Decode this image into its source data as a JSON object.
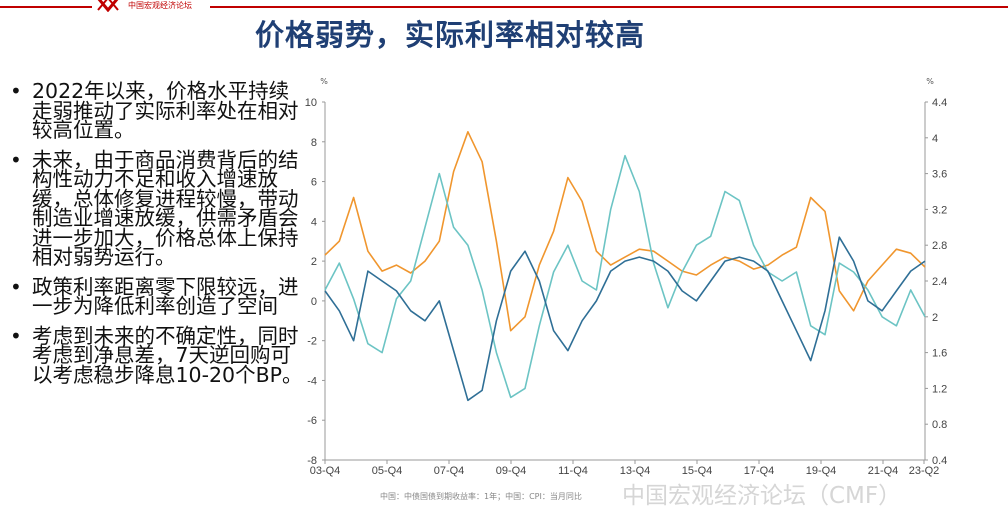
{
  "header": {
    "logo_text": "中国宏观经济论坛",
    "title": "价格弱势，实际利率相对较高"
  },
  "bullets": [
    "2022年以来，价格水平持续走弱推动了实际利率处在相对较高位置。",
    "未来，由于商品消费背后的结构性动力不足和收入增速放缓，总体修复进程较慢，带动制造业增速放缓，供需矛盾会进一步加大，价格总体上保持相对弱势运行。",
    "政策利率距离零下限较远，进一步为降低利率创造了空间",
    "考虑到未来的不确定性，同时考虑到净息差，7天逆回购可以考虑稳步降息10-20个BP。"
  ],
  "watermark": "中国宏观经济论坛（CMF）",
  "chart_data": {
    "type": "line",
    "x_ticks": [
      "03-Q4",
      "05-Q4",
      "07-Q4",
      "09-Q4",
      "11-Q4",
      "13-Q4",
      "15-Q4",
      "17-Q4",
      "19-Q4",
      "21-Q4",
      "23-Q2"
    ],
    "x_range": [
      "2003-Q4",
      "2023-Q2"
    ],
    "left_axis": {
      "unit": "%",
      "ylim": [
        -8,
        10
      ],
      "ticks": [
        -8,
        -6,
        -4,
        -2,
        0,
        2,
        4,
        6,
        8,
        10
      ]
    },
    "right_axis": {
      "unit": "%",
      "ylim": [
        0.4,
        4.4
      ],
      "ticks": [
        0.4,
        0.8,
        1.2,
        1.6,
        2,
        2.4,
        2.8,
        3.2,
        3.6,
        4,
        4.4
      ]
    },
    "grid": false,
    "colors": {
      "orange": "#f0962e",
      "teal": "#6cc4c4",
      "blue": "#2f6f96"
    },
    "series": [
      {
        "axis": "left",
        "color": "orange",
        "values": [
          2.3,
          3.0,
          5.2,
          2.5,
          1.5,
          1.8,
          1.4,
          2.0,
          3.0,
          6.5,
          8.5,
          7.0,
          3.0,
          -1.5,
          -0.8,
          1.8,
          3.5,
          6.2,
          5.0,
          2.5,
          1.8,
          2.2,
          2.6,
          2.5,
          2.0,
          1.5,
          1.3,
          1.8,
          2.2,
          2.0,
          1.6,
          1.8,
          2.3,
          2.7,
          5.2,
          4.5,
          0.5,
          -0.5,
          1.0,
          1.8,
          2.6,
          2.4,
          1.7
        ]
      },
      {
        "axis": "right",
        "color": "teal",
        "values": [
          2.3,
          2.6,
          2.2,
          1.7,
          1.6,
          2.2,
          2.4,
          3.0,
          3.6,
          3.0,
          2.8,
          2.3,
          1.6,
          1.1,
          1.2,
          1.9,
          2.5,
          2.8,
          2.4,
          2.3,
          3.2,
          3.8,
          3.4,
          2.6,
          2.1,
          2.5,
          2.8,
          2.9,
          3.4,
          3.3,
          2.8,
          2.5,
          2.4,
          2.5,
          1.9,
          1.8,
          2.6,
          2.5,
          2.3,
          2.0,
          1.9,
          2.3,
          2.0
        ]
      },
      {
        "axis": "left",
        "color": "blue",
        "values": [
          0.5,
          -0.5,
          -2.0,
          1.5,
          1.0,
          0.5,
          -0.5,
          -1.0,
          0.0,
          -2.5,
          -5.0,
          -4.5,
          -1.0,
          1.5,
          2.5,
          1.0,
          -1.5,
          -2.5,
          -1.0,
          0.0,
          1.5,
          2.0,
          2.2,
          2.0,
          1.5,
          0.5,
          0.0,
          1.0,
          2.0,
          2.2,
          2.0,
          1.5,
          0.0,
          -1.5,
          -3.0,
          -0.5,
          3.2,
          2.0,
          0.0,
          -0.5,
          0.5,
          1.5,
          2.0
        ]
      }
    ],
    "legend_note": "中国：中债国债到期收益率：1年；中国：CPI：当月同比"
  }
}
